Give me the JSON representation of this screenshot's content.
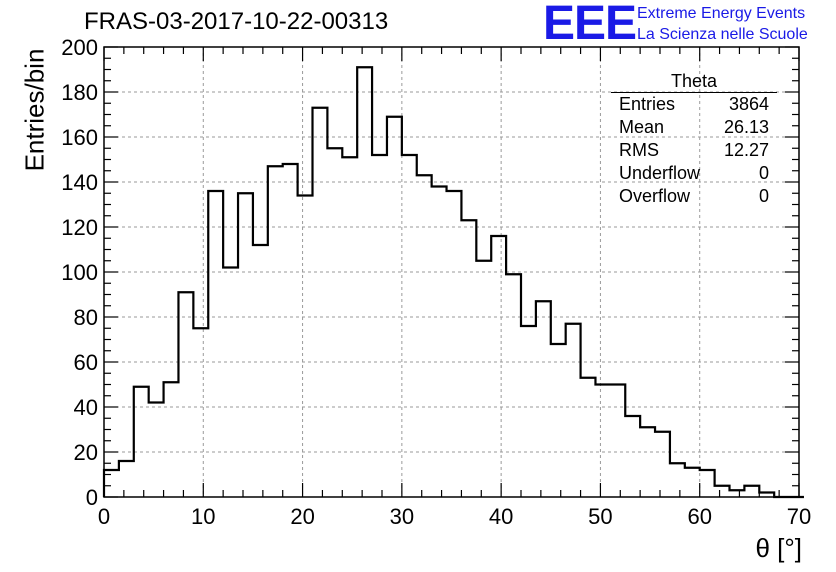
{
  "plot_title": "FRAS-03-2017-10-22-00313",
  "logo": {
    "mark": "EEE",
    "line1": "Extreme Energy Events",
    "line2": "La Scienza nelle Scuole",
    "color": "#1a1ae6"
  },
  "stats_box": {
    "title": "Theta",
    "rows": [
      {
        "label": "Entries",
        "value": "3864"
      },
      {
        "label": "Mean",
        "value": "26.13"
      },
      {
        "label": "RMS",
        "value": "12.27"
      },
      {
        "label": "Underflow",
        "value": "0"
      },
      {
        "label": "Overflow",
        "value": "0"
      }
    ]
  },
  "chart_data": {
    "type": "bar",
    "style": "step-histogram",
    "title": "FRAS-03-2017-10-22-00313",
    "xlabel": "θ [°]",
    "ylabel": "Entries/bin",
    "xlim": [
      0,
      70
    ],
    "ylim": [
      0,
      200
    ],
    "x_ticks": [
      0,
      10,
      20,
      30,
      40,
      50,
      60,
      70
    ],
    "y_ticks": [
      0,
      20,
      40,
      60,
      80,
      100,
      120,
      140,
      160,
      180,
      200
    ],
    "grid": true,
    "bin_width": 1.5,
    "bin_edges_start": 0,
    "values": [
      12,
      16,
      49,
      42,
      51,
      91,
      75,
      136,
      102,
      135,
      112,
      147,
      148,
      134,
      173,
      155,
      151,
      191,
      152,
      169,
      152,
      143,
      138,
      136,
      123,
      105,
      116,
      99,
      76,
      87,
      68,
      77,
      53,
      50,
      50,
      36,
      31,
      29,
      15,
      13,
      12,
      5,
      3,
      5,
      2,
      0,
      0
    ]
  }
}
